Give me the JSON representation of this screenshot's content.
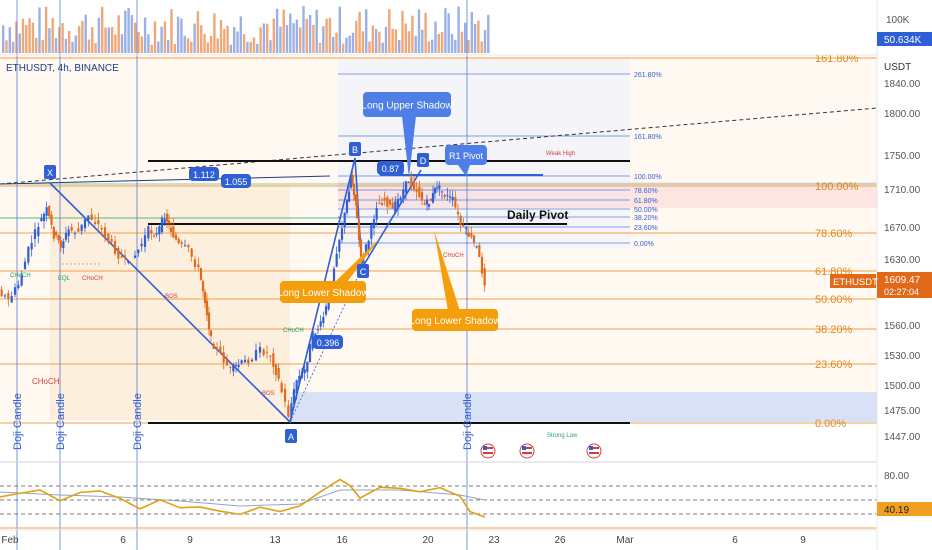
{
  "header": {
    "symbol": "ETHUSDT, 4h, BINANCE"
  },
  "colors": {
    "up": "#2f5fd6",
    "down": "#e06a1a",
    "orange": "#f59e0b",
    "blue": "#3b82f6",
    "fib_orange": "#f0a04b"
  },
  "chart_data": {
    "type": "candlestick",
    "price_axis": {
      "unit": "USDT",
      "ticks": [
        "1840.00",
        "1800.00",
        "1750.00",
        "1710.00",
        "1670.00",
        "1630.00",
        "1560.00",
        "1530.00",
        "1500.00",
        "1475.00",
        "1447.00"
      ],
      "last_price": {
        "label": "ETHUSDT",
        "value": "1609.47",
        "countdown": "02:27:04"
      }
    },
    "volume_axis": {
      "ticks": [
        "100K"
      ],
      "current": "50.634K"
    },
    "rsi_axis": {
      "ticks": [
        "80.00"
      ],
      "current": "40.19"
    },
    "x_axis": {
      "ticks": [
        "Feb",
        "6",
        "9",
        "13",
        "16",
        "20",
        "23",
        "26",
        "Mar",
        "6",
        "9"
      ]
    },
    "fib_right": [
      "161.80%",
      "100.00%",
      "78.60%",
      "61.80%",
      "50.00%",
      "38.20%",
      "23.60%",
      "0.00%"
    ],
    "fib_inner": [
      "261.80%",
      "161.80%",
      "100.00%",
      "78.60%",
      "61.80%",
      "50.00%",
      "38.20%",
      "23.60%",
      "0.00%"
    ],
    "xabcd": {
      "points": [
        "X",
        "A",
        "B",
        "C",
        "D"
      ],
      "ratios": [
        "1.112",
        "1.055",
        "0.87",
        "0.396"
      ]
    },
    "annotations": {
      "long_upper_shadow": "Long Upper Shadow",
      "long_lower_shadow_1": "Long Lower Shadow",
      "long_lower_shadow_2": "Long Lower Shadow",
      "r1_pivot": "R1 Pivot",
      "daily_pivot": "Daily Pivot",
      "weak_high": "Weak High",
      "strong_low": "Strong Low",
      "doji": "Doji Candle",
      "choch": "CHoCH",
      "bos": "BOS",
      "eql": "EQL"
    }
  }
}
